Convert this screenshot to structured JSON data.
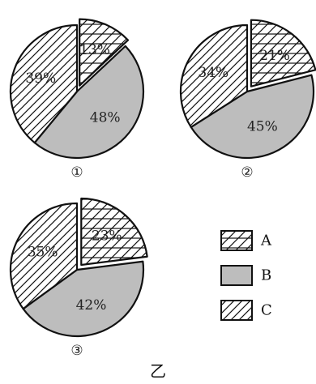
{
  "figure_label": "乙",
  "colors": {
    "A": "#ffffff",
    "B": "#bdbdbd",
    "C": "#ffffff",
    "stroke": "#111111"
  },
  "patterns": {
    "A": "crosshatch",
    "B": "solid-gray",
    "C": "diagonal-lines"
  },
  "chart_data": [
    {
      "type": "pie",
      "label": "①",
      "categories": [
        "A",
        "B",
        "C"
      ],
      "values": [
        13,
        48,
        39
      ],
      "value_labels": [
        "13%",
        "48%",
        "39%"
      ],
      "exploded": "A"
    },
    {
      "type": "pie",
      "label": "②",
      "categories": [
        "A",
        "B",
        "C"
      ],
      "values": [
        21,
        45,
        34
      ],
      "value_labels": [
        "21%",
        "45%",
        "34%"
      ],
      "exploded": "A"
    },
    {
      "type": "pie",
      "label": "③",
      "categories": [
        "A",
        "B",
        "C"
      ],
      "values": [
        23,
        42,
        35
      ],
      "value_labels": [
        "23%",
        "42%",
        "35%"
      ],
      "exploded": "A"
    }
  ],
  "legend": [
    {
      "key": "A",
      "label": "A"
    },
    {
      "key": "B",
      "label": "B"
    },
    {
      "key": "C",
      "label": "C"
    }
  ]
}
